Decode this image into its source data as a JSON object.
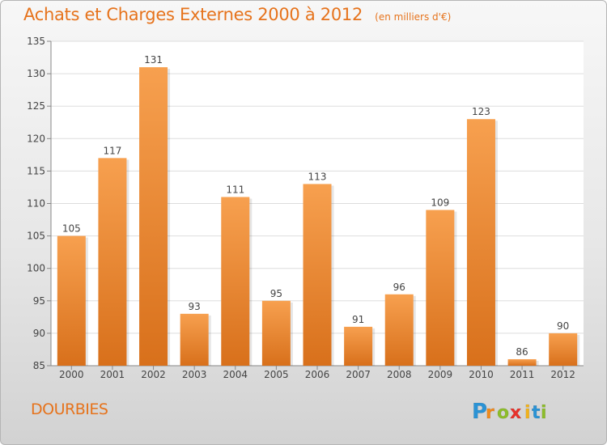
{
  "header": {
    "title": "Achats et Charges Externes 2000 à 2012",
    "unit": "(en milliers d'€)"
  },
  "footer": {
    "commune": "DOURBIES"
  },
  "logo": {
    "letters": [
      "P",
      "r",
      "o",
      "x",
      "i",
      "t",
      "i"
    ],
    "colors": [
      "#2b93d5",
      "#f08a1c",
      "#8dbd2a",
      "#e8312a",
      "#f2b21b",
      "#2b93d5",
      "#8dbd2a"
    ]
  },
  "colors": {
    "bar_top": "#f7a04f",
    "bar_bottom": "#d8701b",
    "title": "#e6731c",
    "grid": "#dddddd",
    "axis": "#888888"
  },
  "chart_data": {
    "type": "bar",
    "categories": [
      "2000",
      "2001",
      "2002",
      "2003",
      "2004",
      "2005",
      "2006",
      "2007",
      "2008",
      "2009",
      "2010",
      "2011",
      "2012"
    ],
    "values": [
      105,
      117,
      131,
      93,
      111,
      95,
      113,
      91,
      96,
      109,
      123,
      86,
      90
    ],
    "data_labels": [
      "105",
      "117",
      "131",
      "93",
      "111",
      "95",
      "113",
      "91",
      "96",
      "109",
      "123",
      "86",
      "90"
    ],
    "ylim": [
      85,
      135
    ],
    "yticks": [
      85,
      90,
      95,
      100,
      105,
      110,
      115,
      120,
      125,
      130,
      135
    ],
    "grid": true,
    "legend": "none"
  }
}
